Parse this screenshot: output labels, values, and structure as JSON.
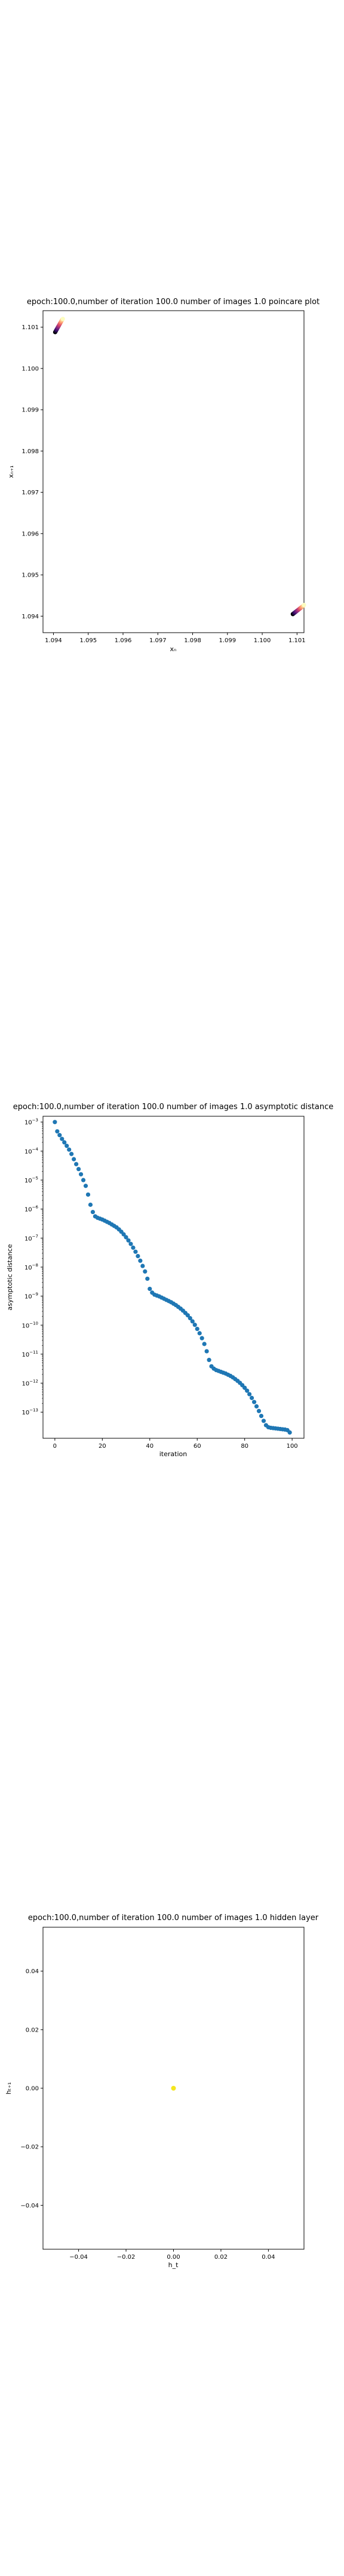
{
  "colors": {
    "scatter_blue": "#1f77b4",
    "poincare_cmap": [
      "#000004",
      "#3b0f70",
      "#8c2981",
      "#de4968",
      "#fe9f6d",
      "#fcfdbf"
    ],
    "hidden_point": "#f4e61e",
    "axis": "#000000"
  },
  "chart_data": [
    {
      "type": "scatter",
      "title": "epoch:100.0,number of iteration 100.0 number of images 1.0 poincare plot",
      "xlabel": "xₙ",
      "ylabel": "xₙ₊₁",
      "xlim": [
        1.0937,
        1.1012
      ],
      "ylim": [
        1.0936,
        1.1014
      ],
      "xticks": [
        1.094,
        1.095,
        1.096,
        1.097,
        1.098,
        1.099,
        1.1,
        1.101
      ],
      "xtick_labels": [
        "1.094",
        "1.095",
        "1.096",
        "1.097",
        "1.098",
        "1.099",
        "1.100",
        "1.101"
      ],
      "yticks": [
        1.094,
        1.095,
        1.096,
        1.097,
        1.098,
        1.099,
        1.1,
        1.101
      ],
      "ytick_labels": [
        "1.094",
        "1.095",
        "1.096",
        "1.097",
        "1.098",
        "1.099",
        "1.100",
        "1.101"
      ],
      "series": [
        {
          "x": [
            1.09405,
            1.09407,
            1.09409,
            1.09411,
            1.09413,
            1.09415,
            1.09417,
            1.09419,
            1.09421,
            1.09423,
            1.09425,
            1.09427
          ],
          "y": [
            1.10088,
            1.10091,
            1.10094,
            1.10097,
            1.101,
            1.10103,
            1.10106,
            1.10109,
            1.10112,
            1.10115,
            1.10118,
            1.1012
          ],
          "color_value": [
            0.0,
            0.09,
            0.18,
            0.27,
            0.36,
            0.45,
            0.55,
            0.64,
            0.73,
            0.82,
            0.91,
            1.0
          ]
        },
        {
          "x": [
            1.10088,
            1.10091,
            1.10094,
            1.10097,
            1.101,
            1.10103,
            1.10106,
            1.10109,
            1.10112,
            1.10115,
            1.10118,
            1.1012
          ],
          "y": [
            1.09405,
            1.09407,
            1.09409,
            1.09411,
            1.09413,
            1.09415,
            1.09417,
            1.09419,
            1.09421,
            1.09423,
            1.09425,
            1.09427
          ],
          "color_value": [
            0.0,
            0.09,
            0.18,
            0.27,
            0.36,
            0.45,
            0.55,
            0.64,
            0.73,
            0.82,
            0.91,
            1.0
          ]
        }
      ]
    },
    {
      "type": "scatter",
      "title": "epoch:100.0,number of iteration 100.0  number of images 1.0 asymptotic distance",
      "xlabel": "iteration",
      "ylabel": "asymptotic distance",
      "scale_y": "log",
      "xlim": [
        -5,
        105
      ],
      "ylim_log10": [
        -13.9,
        -2.8
      ],
      "xticks": [
        0,
        20,
        40,
        60,
        80,
        100
      ],
      "xtick_labels": [
        "0",
        "20",
        "40",
        "60",
        "80",
        "100"
      ],
      "yticks_log10": [
        -3,
        -4,
        -5,
        -6,
        -7,
        -8,
        -9,
        -10,
        -11,
        -12,
        -13
      ],
      "ytick_base": "10",
      "ytick_exponents": [
        "−3",
        "−4",
        "−5",
        "−6",
        "−7",
        "−8",
        "−9",
        "−10",
        "−11",
        "−12",
        "−13"
      ],
      "x": [
        0,
        1,
        2,
        3,
        4,
        5,
        6,
        7,
        8,
        9,
        10,
        11,
        12,
        13,
        14,
        15,
        16,
        17,
        18,
        19,
        20,
        21,
        22,
        23,
        24,
        25,
        26,
        27,
        28,
        29,
        30,
        31,
        32,
        33,
        34,
        35,
        36,
        37,
        38,
        39,
        40,
        41,
        42,
        43,
        44,
        45,
        46,
        47,
        48,
        49,
        50,
        51,
        52,
        53,
        54,
        55,
        56,
        57,
        58,
        59,
        60,
        61,
        62,
        63,
        64,
        65,
        66,
        67,
        68,
        69,
        70,
        71,
        72,
        73,
        74,
        75,
        76,
        77,
        78,
        79,
        80,
        81,
        82,
        83,
        84,
        85,
        86,
        87,
        88,
        89,
        90,
        91,
        92,
        93,
        94,
        95,
        96,
        97,
        98,
        99
      ],
      "log10_y": [
        -3.0,
        -3.32,
        -3.45,
        -3.58,
        -3.7,
        -3.82,
        -3.95,
        -4.1,
        -4.28,
        -4.45,
        -4.62,
        -4.8,
        -5.0,
        -5.2,
        -5.5,
        -5.85,
        -6.1,
        -6.25,
        -6.3,
        -6.33,
        -6.36,
        -6.4,
        -6.44,
        -6.48,
        -6.53,
        -6.58,
        -6.63,
        -6.7,
        -6.78,
        -6.87,
        -6.97,
        -7.08,
        -7.2,
        -7.33,
        -7.47,
        -7.62,
        -7.78,
        -7.96,
        -8.15,
        -8.4,
        -8.75,
        -8.88,
        -8.95,
        -8.98,
        -9.01,
        -9.05,
        -9.09,
        -9.13,
        -9.17,
        -9.21,
        -9.26,
        -9.31,
        -9.37,
        -9.43,
        -9.5,
        -9.58,
        -9.66,
        -9.76,
        -9.87,
        -9.99,
        -10.13,
        -10.28,
        -10.45,
        -10.65,
        -10.9,
        -11.2,
        -11.42,
        -11.5,
        -11.55,
        -11.58,
        -11.61,
        -11.64,
        -11.67,
        -11.71,
        -11.75,
        -11.8,
        -11.86,
        -11.92,
        -11.99,
        -12.07,
        -12.16,
        -12.26,
        -12.38,
        -12.51,
        -12.65,
        -12.8,
        -12.96,
        -13.13,
        -13.3,
        -13.45,
        -13.52,
        -13.54,
        -13.55,
        -13.56,
        -13.57,
        -13.58,
        -13.59,
        -13.6,
        -13.62,
        -13.7
      ]
    },
    {
      "type": "scatter",
      "title": "epoch:100.0,number of iteration 100.0  number of images 1.0 hidden layer",
      "xlabel": "h_t",
      "ylabel": "hₜ₊₁",
      "xlim": [
        -0.055,
        0.055
      ],
      "ylim": [
        -0.055,
        0.055
      ],
      "xticks": [
        -0.04,
        -0.02,
        0.0,
        0.02,
        0.04
      ],
      "xtick_labels": [
        "−0.04",
        "−0.02",
        "0.00",
        "0.02",
        "0.04"
      ],
      "yticks": [
        0.04,
        0.02,
        0.0,
        -0.02,
        -0.04
      ],
      "ytick_labels": [
        "0.04",
        "0.02",
        "0.00",
        "−0.02",
        "−0.04"
      ],
      "x": [
        0.0
      ],
      "y": [
        0.0
      ]
    }
  ]
}
